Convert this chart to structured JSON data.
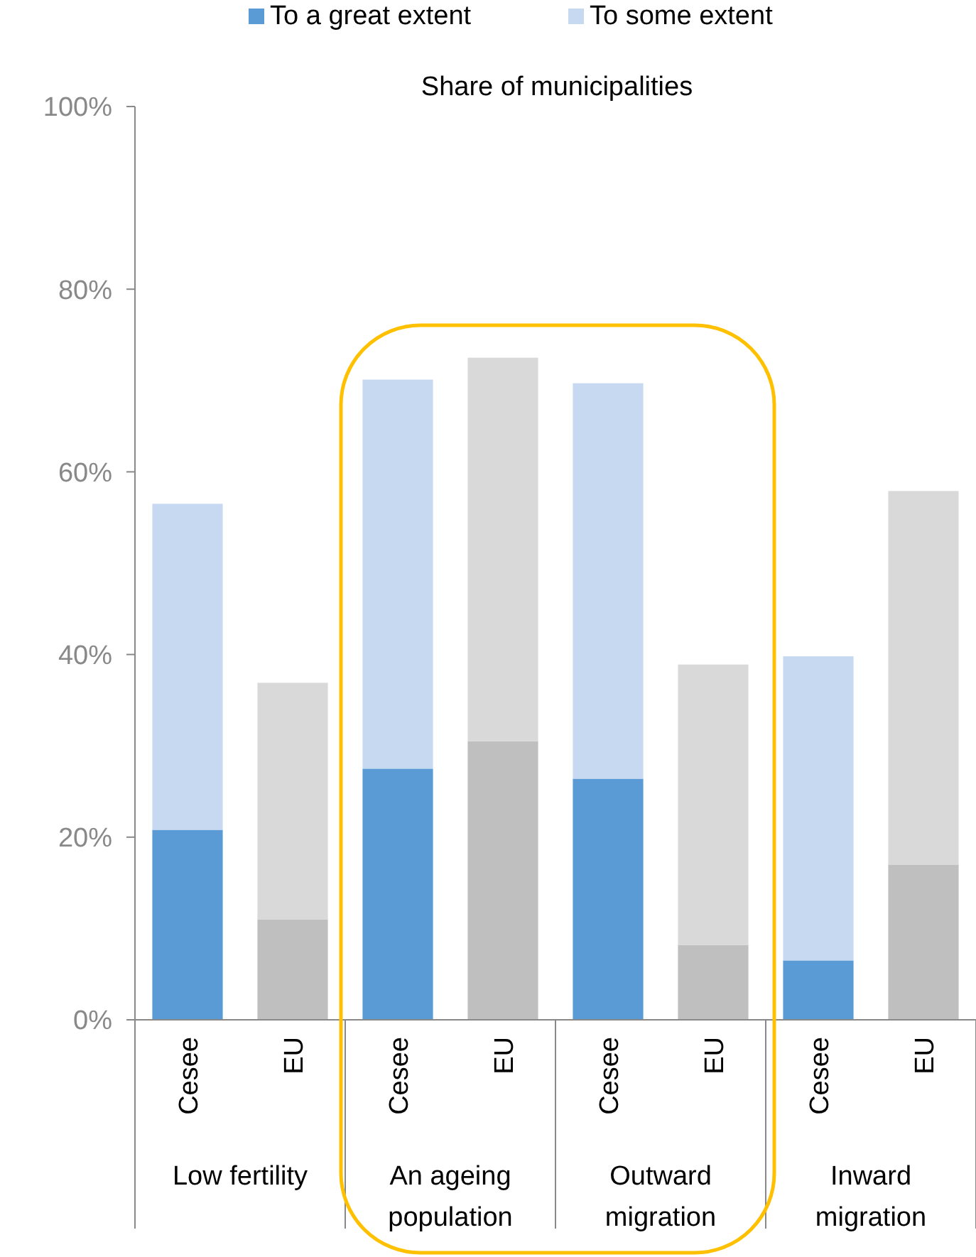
{
  "chart_data": {
    "type": "bar",
    "stacked": true,
    "title": "Share of municipalities",
    "legend": "top",
    "grid": false,
    "categories": [
      "Cesee",
      "EU",
      "Cesee",
      "EU",
      "Cesee",
      "EU",
      "Cesee",
      "EU"
    ],
    "series": [
      {
        "name": "To a great extent",
        "color": "#5b9bd5",
        "colors": [
          "#5b9bd5",
          "#bfbfbf",
          "#5b9bd5",
          "#bfbfbf",
          "#5b9bd5",
          "#bfbfbf",
          "#5b9bd5",
          "#bfbfbf"
        ],
        "values": [
          20.8,
          11,
          27.5,
          30.5,
          26.4,
          8.2,
          6.5,
          17
        ]
      },
      {
        "name": "To some extent",
        "color": "#c6d9f0",
        "colors": [
          "#c6d9f0",
          "#d9d9d9",
          "#c6d9f0",
          "#d9d9d9",
          "#c6d9f0",
          "#d9d9d9",
          "#c6d9f0",
          "#d9d9d9"
        ],
        "values": [
          35.7,
          25.9,
          42.6,
          42,
          43.3,
          30.7,
          33.3,
          40.9
        ]
      }
    ],
    "annotations": [
      "Low fertility",
      "An ageing population",
      "Outward migration",
      "Inward migration"
    ],
    "ylim": [
      0,
      100
    ],
    "yticks": [
      {
        "value": 0,
        "label": "0%"
      },
      {
        "value": 20,
        "label": "20%"
      },
      {
        "value": 40,
        "label": "40%"
      },
      {
        "value": 60,
        "label": "60%"
      },
      {
        "value": 80,
        "label": "80%"
      },
      {
        "value": 100,
        "label": "100%"
      }
    ]
  }
}
